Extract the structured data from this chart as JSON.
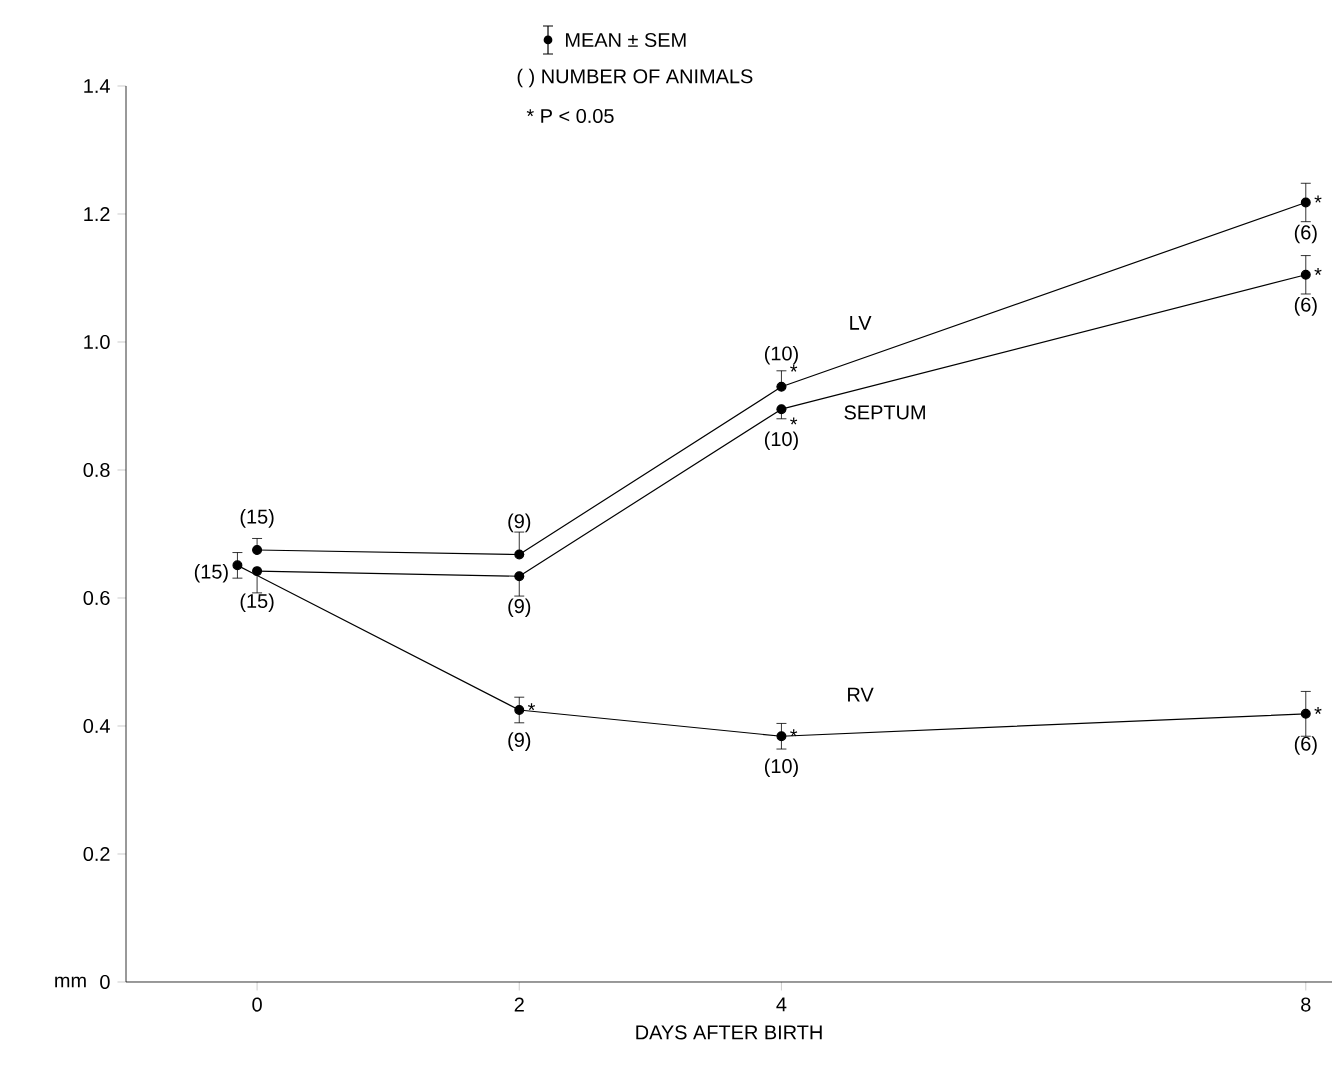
{
  "chart_data": {
    "type": "line",
    "xlabel": "DAYS AFTER BIRTH",
    "ylabel": "mm",
    "x": [
      0,
      2,
      4,
      8
    ],
    "series": [
      {
        "name": "LV",
        "color": "#000000",
        "values": [
          0.675,
          0.668,
          0.93,
          1.218
        ],
        "errors": [
          [
            0.675,
            0.693
          ],
          [
            0.668,
            0.703
          ],
          [
            0.93,
            0.955
          ],
          0.03
        ]
      },
      {
        "name": "SEPTUM",
        "color": "#000000",
        "values": [
          0.642,
          0.634,
          0.895,
          1.105
        ],
        "errors": [
          [
            0.608,
            0.642
          ],
          [
            0.603,
            0.634
          ],
          [
            0.88,
            0.895
          ],
          0.03
        ]
      },
      {
        "name": "RV",
        "color": "#000000",
        "x": [
          -0.15,
          2,
          4,
          8
        ],
        "values": [
          0.651,
          0.425,
          0.384,
          0.419
        ],
        "errors": [
          0.02,
          0.02,
          0.02,
          0.035
        ]
      }
    ],
    "xlim": [
      -1,
      8.2
    ],
    "xticks": [
      0,
      2,
      4,
      8
    ],
    "ylim": [
      0,
      1.4
    ],
    "yticks": [
      {
        "value": 0,
        "label": "0"
      },
      {
        "value": 0.2,
        "label": "0.2"
      },
      {
        "value": 0.4,
        "label": "0.4"
      },
      {
        "value": 0.6,
        "label": "0.6"
      },
      {
        "value": 0.8,
        "label": "0.8"
      },
      {
        "value": 1.0,
        "label": "1.0"
      },
      {
        "value": 1.2,
        "label": "1.2"
      },
      {
        "value": 1.4,
        "label": "1.4"
      }
    ],
    "marker": "circle",
    "line_style": "solid",
    "annotations": [
      "MEAN ± SEM",
      "( ) NUMBER OF ANIMALS",
      "* P < 0.05",
      {
        "text": "(15)",
        "x": 0,
        "y": 0.675
      },
      {
        "text": "(9)",
        "x": 2,
        "y": 0.668
      },
      {
        "text": "(10)",
        "x": 4,
        "y": 0.93
      },
      {
        "text": "(6)",
        "x": 8,
        "y": 1.218
      },
      {
        "text": "(15)",
        "x": 0,
        "y": 0.642
      },
      {
        "text": "(9)",
        "x": 2,
        "y": 0.634
      },
      {
        "text": "(10)",
        "x": 4,
        "y": 0.895
      },
      {
        "text": "(6)",
        "x": 8,
        "y": 1.105
      },
      {
        "text": "(15)",
        "x": -0.15,
        "y": 0.651
      },
      {
        "text": "(9)",
        "x": 2,
        "y": 0.425
      },
      {
        "text": "(10)",
        "x": 4,
        "y": 0.384
      },
      {
        "text": "(6)",
        "x": 8,
        "y": 0.419
      },
      {
        "text": "*",
        "x": 4,
        "y": 0.93
      },
      {
        "text": "*",
        "x": 8,
        "y": 1.218
      },
      {
        "text": "*",
        "x": 4,
        "y": 0.895
      },
      {
        "text": "*",
        "x": 8,
        "y": 1.105
      },
      {
        "text": "*",
        "x": 2,
        "y": 0.425
      },
      {
        "text": "*",
        "x": 4,
        "y": 0.384
      },
      {
        "text": "*",
        "x": 8,
        "y": 0.419
      }
    ]
  }
}
